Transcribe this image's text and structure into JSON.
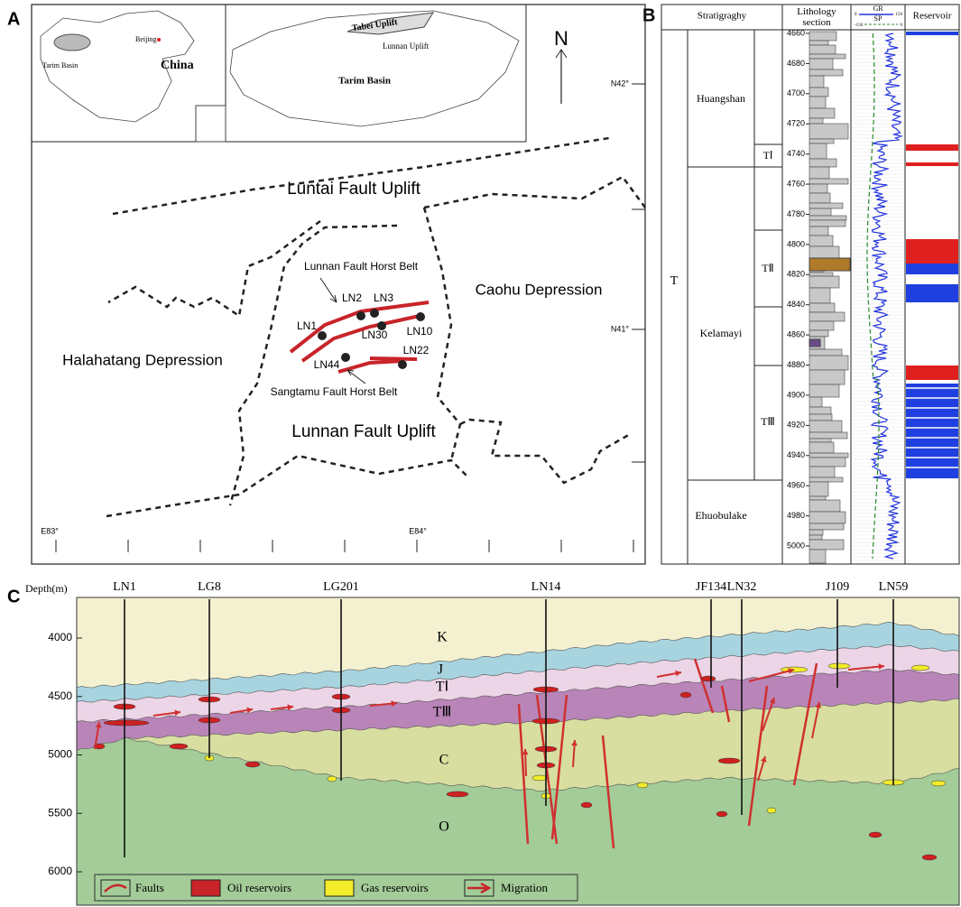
{
  "panel_labels": {
    "a": "A",
    "b": "B",
    "c": "C"
  },
  "panel_a": {
    "inset_china": {
      "beijing": "Beijing",
      "tarim_basin": "Tarim Basin",
      "china": "China"
    },
    "inset_tarim": {
      "tabei_uplift": "Tabei Uplift",
      "lunnan_uplift": "Lunnan Uplift",
      "tarim_basin": "Tarim Basin"
    },
    "north": "N",
    "latitudes": [
      "N42°",
      "N41°"
    ],
    "longitudes": [
      "E83°",
      "E84°"
    ],
    "regions": [
      "Luntai Fault Uplift",
      "Lunnan Fault Horst Belt",
      "Caohu Depression",
      "Halahatang Depression",
      "Sangtamu Fault Horst Belt",
      "Lunnan Fault Uplift"
    ],
    "wells": [
      "LN1",
      "LN2",
      "LN3",
      "LN10",
      "LN30",
      "LN44",
      "LN22"
    ]
  },
  "panel_b": {
    "headers": {
      "stratigraphy": "Stratigraghy",
      "lithology": "Lithology section",
      "gr": "GR",
      "sp": "SP",
      "reservoir": "Reservoir"
    },
    "gr_scale": [
      "0",
      "150"
    ],
    "sp_scale": [
      "-150",
      "0"
    ],
    "system": "T",
    "formations": [
      "Huangshan",
      "Kelamayi",
      "Ehuobulake"
    ],
    "members": [
      "TⅠ",
      "TⅡ",
      "TⅢ"
    ],
    "depth_ticks": [
      4660,
      4680,
      4700,
      4720,
      4740,
      4760,
      4780,
      4800,
      4820,
      4840,
      4860,
      4880,
      4900,
      4920,
      4940,
      4960,
      4980,
      5000
    ]
  },
  "panel_c": {
    "depth_label": "Depth(m)",
    "depth_ticks": [
      4000,
      4500,
      5000,
      5500,
      6000
    ],
    "wells": [
      "LN1",
      "LG8",
      "LG201",
      "LN14",
      "JF134",
      "LN32",
      "J109",
      "LN59"
    ],
    "layers": [
      "K",
      "J",
      "TⅠ",
      "TⅢ",
      "C",
      "O"
    ],
    "legend": [
      "Faults",
      "Oil reservoirs",
      "Gas reservoirs",
      "Migration"
    ]
  }
}
